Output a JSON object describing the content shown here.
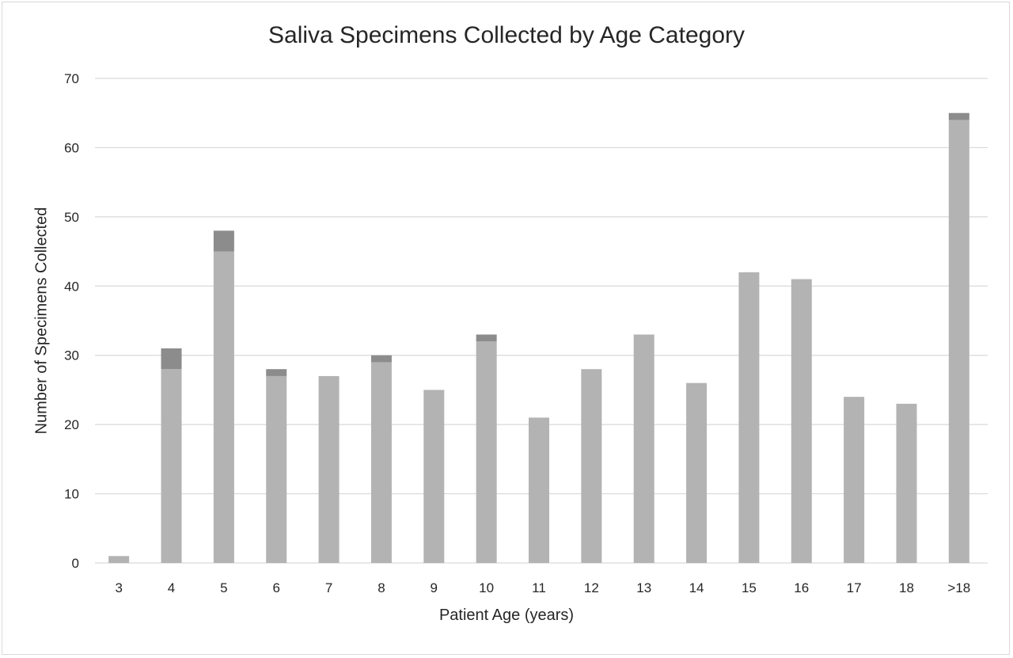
{
  "chart_data": {
    "type": "bar",
    "stacked": true,
    "title": "Saliva Specimens Collected by Age Category",
    "xlabel": "Patient Age (years)",
    "ylabel": "Number of Specimens Collected",
    "categories": [
      "3",
      "4",
      "5",
      "6",
      "7",
      "8",
      "9",
      "10",
      "11",
      "12",
      "13",
      "14",
      "15",
      "16",
      "17",
      "18",
      ">18"
    ],
    "series": [
      {
        "values": [
          1,
          28,
          45,
          27,
          27,
          29,
          25,
          32,
          21,
          28,
          33,
          26,
          42,
          41,
          24,
          23,
          64
        ],
        "color": "#b3b3b3"
      },
      {
        "values": [
          0,
          3,
          3,
          1,
          0,
          1,
          0,
          1,
          0,
          0,
          0,
          0,
          0,
          0,
          0,
          0,
          1
        ],
        "color": "#8c8c8c"
      }
    ],
    "ylim": [
      0,
      70
    ],
    "yticks": [
      0,
      10,
      20,
      30,
      40,
      50,
      60,
      70
    ],
    "grid": true,
    "legend": "none"
  }
}
